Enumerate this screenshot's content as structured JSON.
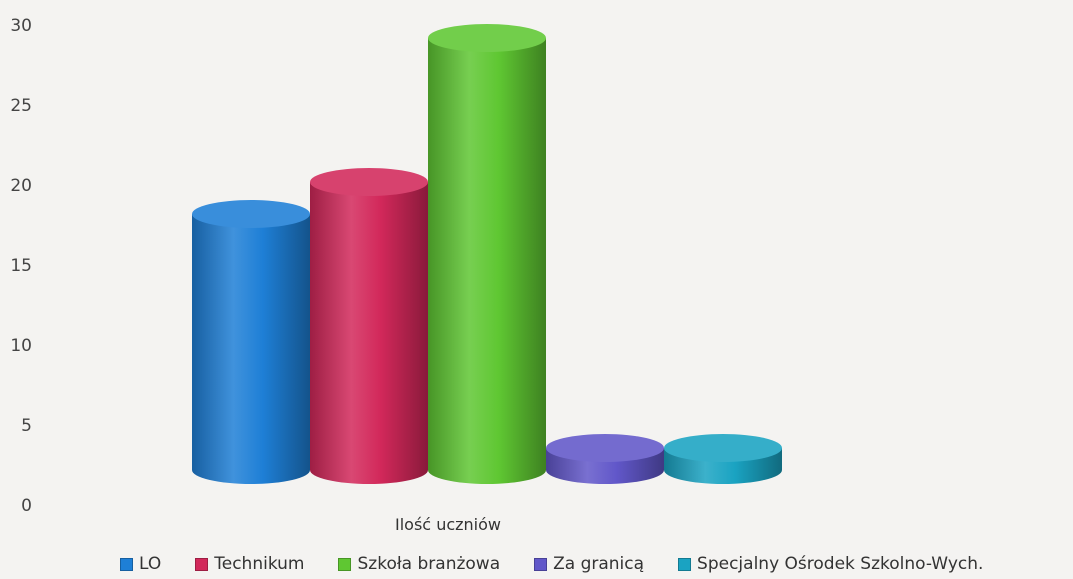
{
  "chart_data": {
    "type": "bar",
    "style": "3d-cylinder",
    "title": "",
    "xlabel": "Ilość uczniów",
    "ylabel": "",
    "ylim": [
      0,
      30
    ],
    "yticks": [
      0,
      5,
      10,
      15,
      20,
      25,
      30
    ],
    "grid": false,
    "legend_position": "bottom",
    "series": [
      {
        "name": "LO",
        "value": 16,
        "color": "#1e7fd6"
      },
      {
        "name": "Technikum",
        "value": 18,
        "color": "#d2285a"
      },
      {
        "name": "Szkoła branżowa",
        "value": 27,
        "color": "#5fc732"
      },
      {
        "name": "Za granicą",
        "value": 1,
        "color": "#6157c9"
      },
      {
        "name": "Specjalny Ośrodek Szkolno-Wych.",
        "value": 1,
        "color": "#1aa3c2"
      }
    ]
  }
}
